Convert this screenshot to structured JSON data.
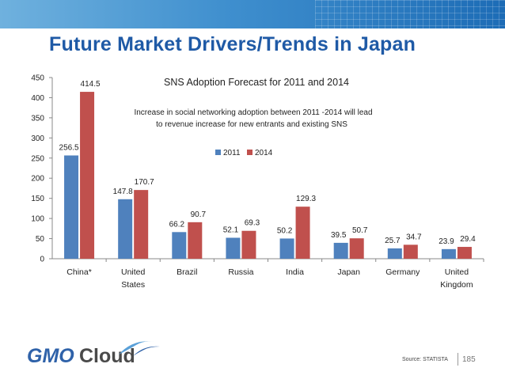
{
  "slide": {
    "title": "Future Market Drivers/Trends in Japan",
    "source": "Source: STATISTA",
    "page_number": "185",
    "logo_left": "GMO",
    "logo_right": "Cloud"
  },
  "colors": {
    "series_2011": "#4f81bd",
    "series_2014": "#c0504d",
    "title_blue": "#1f5aa6"
  },
  "chart_data": {
    "type": "bar",
    "title": "SNS Adoption Forecast for 2011 and 2014",
    "subtitle_line1": "Increase in social networking adoption between 2011 -2014 will lead",
    "subtitle_line2": "to revenue increase for new entrants and existing SNS",
    "categories": [
      [
        "China*"
      ],
      [
        "United",
        "States"
      ],
      [
        "Brazil"
      ],
      [
        "Russia"
      ],
      [
        "India"
      ],
      [
        "Japan"
      ],
      [
        "Germany"
      ],
      [
        "United",
        "Kingdom"
      ]
    ],
    "series": [
      {
        "name": "2011",
        "values": [
          256.5,
          147.8,
          66.2,
          52.1,
          50.2,
          39.5,
          25.7,
          23.9
        ],
        "labels": [
          "256.5",
          "147.8",
          "66.2",
          "52.1",
          "50.2",
          "39.5",
          "25.7",
          "23.9"
        ]
      },
      {
        "name": "2014",
        "values": [
          414.5,
          170.7,
          90.7,
          69.3,
          129.3,
          50.7,
          34.7,
          29.4
        ],
        "labels": [
          "414.5",
          "170.7",
          "90.7",
          "69.3",
          "129.3",
          "50.7",
          "34.7",
          "29.4"
        ]
      }
    ],
    "yticks": [
      "0",
      "50",
      "100",
      "150",
      "200",
      "250",
      "300",
      "350",
      "400",
      "450"
    ],
    "ylim": [
      0,
      450
    ],
    "grid": false,
    "legend_position": "top-center"
  }
}
